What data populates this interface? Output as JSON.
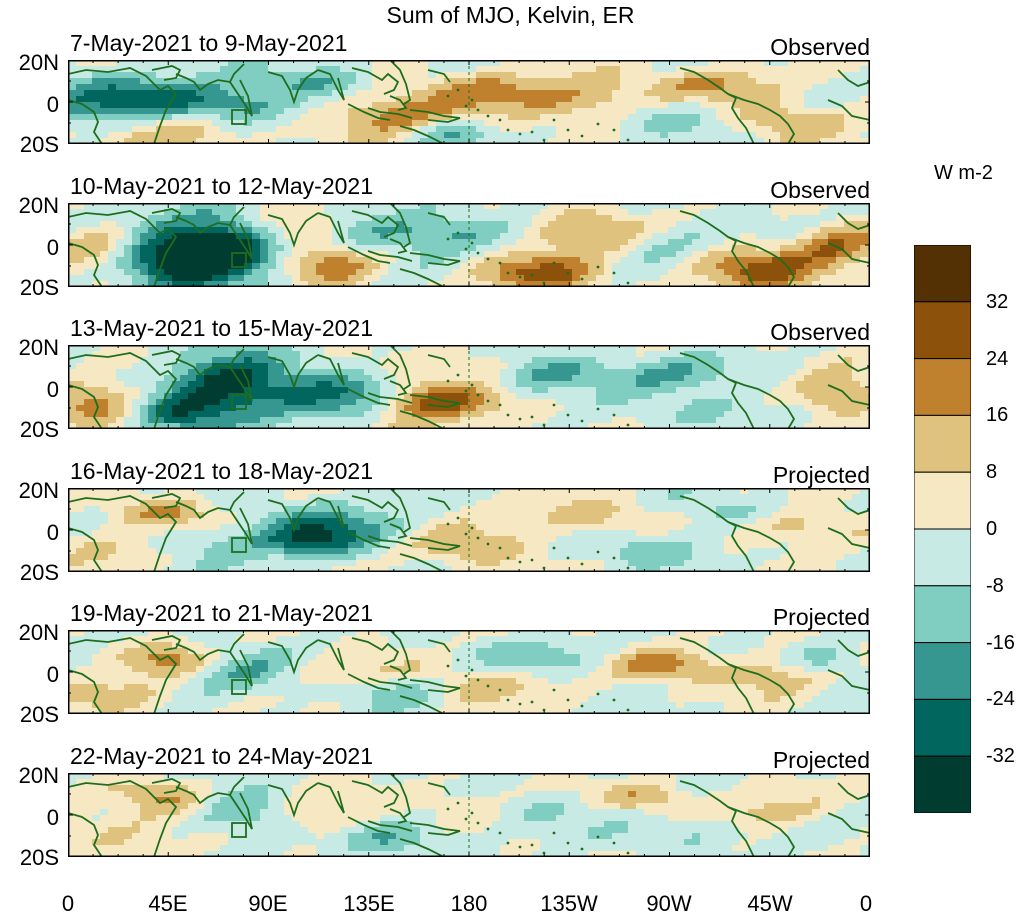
{
  "title": "Sum of MJO, Kelvin, ER",
  "panels": [
    {
      "dates": "7-May-2021 to 9-May-2021",
      "status": "Observed"
    },
    {
      "dates": "10-May-2021 to 12-May-2021",
      "status": "Observed"
    },
    {
      "dates": "13-May-2021 to 15-May-2021",
      "status": "Observed"
    },
    {
      "dates": "16-May-2021 to 18-May-2021",
      "status": "Projected"
    },
    {
      "dates": "19-May-2021 to 21-May-2021",
      "status": "Projected"
    },
    {
      "dates": "22-May-2021 to 24-May-2021",
      "status": "Projected"
    }
  ],
  "lat_labels": [
    "20N",
    "0",
    "20S"
  ],
  "lon_labels": [
    "0",
    "45E",
    "90E",
    "135E",
    "180",
    "135W",
    "90W",
    "45W",
    "0"
  ],
  "colorbar": {
    "unit": "W m-2",
    "tick_labels": [
      "32",
      "24",
      "16",
      "8",
      "0",
      "-8",
      "-16",
      "-24",
      "-32"
    ],
    "colors": [
      "#543005",
      "#8c510a",
      "#bf812d",
      "#dfc27d",
      "#f6e8c3",
      "#c7eae5",
      "#80cdc1",
      "#35978f",
      "#01665e",
      "#003c30"
    ]
  },
  "map": {
    "lat_range": [
      "20S",
      "20N"
    ],
    "lon_range": [
      "0",
      "0"
    ],
    "coastline_color": "#1e6e1e",
    "dateline": "180"
  }
}
